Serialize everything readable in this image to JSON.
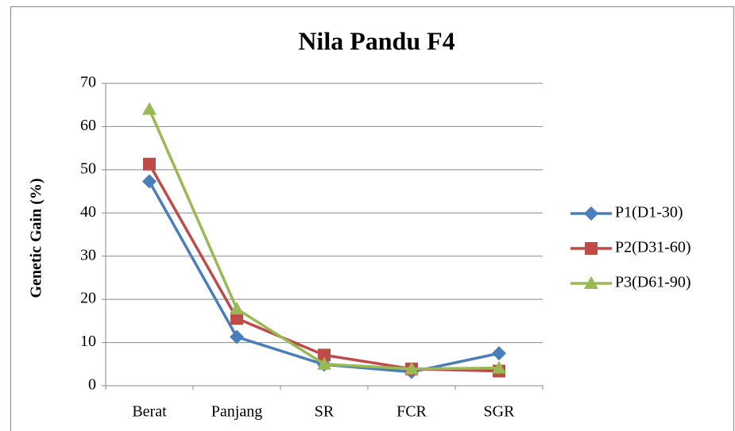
{
  "chart_data": {
    "type": "line",
    "title": "Nila Pandu F4",
    "y_label": "Genetic Gain (%)",
    "categories": [
      "Berat",
      "Panjang",
      "SR",
      "FCR",
      "SGR"
    ],
    "series": [
      {
        "name": "P1(D1-30)",
        "color": "#4a7ebb",
        "marker": "diamond",
        "values": [
          47.3,
          11.3,
          4.9,
          3.2,
          7.5
        ]
      },
      {
        "name": "P2(D31-60)",
        "color": "#be4b48",
        "marker": "square",
        "values": [
          51.3,
          15.6,
          7.1,
          3.9,
          3.4
        ]
      },
      {
        "name": "P3(D61-90)",
        "color": "#98b954",
        "marker": "triangle",
        "values": [
          64.0,
          17.8,
          5.0,
          3.9,
          4.1
        ]
      }
    ],
    "ylim": [
      0,
      70
    ],
    "yticks": [
      0,
      10,
      20,
      30,
      40,
      50,
      60,
      70
    ],
    "grid": true,
    "legend": "right"
  }
}
